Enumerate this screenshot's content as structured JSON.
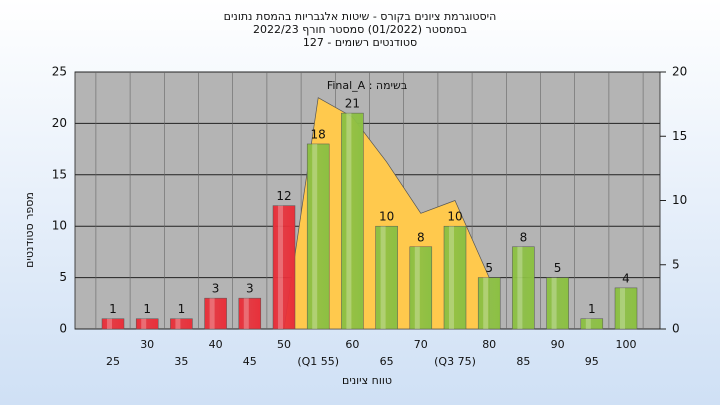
{
  "chart_data": {
    "type": "bar",
    "title_lines": [
      "היסטוגרמת ציונים בקורס - שיטות אלגבריות בהמסת נתונים",
      "בסמסטר (01/2022) סמסטר חורף 2022/23",
      "סטודנטים רשומים - 127"
    ],
    "annotation": "בשימה : Final_A",
    "ylabel": "מספר סטודנטים",
    "xlabel": "טווח ציונים",
    "categories": [
      "25",
      "30",
      "35",
      "40",
      "45",
      "50",
      "(Q1 55)",
      "60",
      "65",
      "70",
      "(Q3 75)",
      "80",
      "85",
      "90",
      "95",
      "100"
    ],
    "values": [
      1,
      1,
      1,
      3,
      3,
      12,
      18,
      21,
      10,
      8,
      10,
      5,
      8,
      5,
      1,
      4
    ],
    "colors": [
      "#e8303a",
      "#e8303a",
      "#e8303a",
      "#e8303a",
      "#e8303a",
      "#e8303a",
      "#8cc043",
      "#8cc043",
      "#8cc043",
      "#8cc043",
      "#8cc043",
      "#8cc043",
      "#8cc043",
      "#8cc043",
      "#8cc043",
      "#8cc043"
    ],
    "area": {
      "axis": "y2",
      "color": "#ffc94d",
      "values": [
        null,
        null,
        null,
        null,
        null,
        0,
        18,
        16.5,
        13,
        9,
        10,
        4,
        null,
        null,
        null,
        null
      ]
    },
    "ylim": [
      0,
      25
    ],
    "yticks": [
      0,
      5,
      10,
      15,
      20,
      25
    ],
    "y2lim": [
      0,
      20
    ],
    "y2ticks": [
      0,
      5,
      10,
      15,
      20
    ],
    "grid": true
  }
}
